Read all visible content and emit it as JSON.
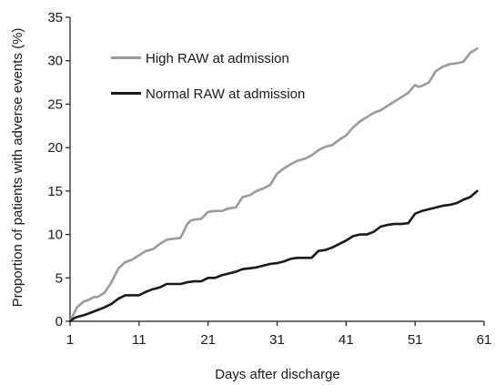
{
  "chart_data": {
    "type": "line",
    "title": "",
    "xlabel": "Days after discharge",
    "ylabel": "Proportion of patients with adverse events (%)",
    "xlim": [
      1,
      61
    ],
    "ylim": [
      0,
      35
    ],
    "xticks": [
      1,
      11,
      21,
      31,
      41,
      51,
      61
    ],
    "yticks": [
      0,
      5,
      10,
      15,
      20,
      25,
      30,
      35
    ],
    "grid": false,
    "legend_position": "top-left",
    "series": [
      {
        "name": "High RAW at admission",
        "color": "#9b9b9b",
        "x": [
          1,
          1.5,
          2,
          3,
          3.5,
          4.5,
          5,
          6,
          7,
          8,
          9,
          10,
          11,
          12,
          13,
          14,
          15,
          16,
          17,
          18,
          18.5,
          19,
          20,
          21,
          22,
          23,
          24,
          25,
          26,
          27,
          28,
          29,
          30,
          31,
          32,
          33,
          34,
          35,
          36,
          37,
          38,
          39,
          40,
          41,
          42,
          43,
          44,
          45,
          46,
          47,
          48,
          49,
          50,
          51,
          51.5,
          52,
          53,
          54,
          55,
          56,
          57,
          58,
          59,
          60
        ],
        "y": [
          0,
          0.8,
          1.6,
          2.3,
          2.4,
          2.8,
          2.8,
          3.3,
          4.5,
          6.1,
          6.8,
          7.1,
          7.6,
          8.1,
          8.3,
          8.9,
          9.4,
          9.5,
          9.6,
          11.2,
          11.6,
          11.7,
          11.8,
          12.6,
          12.7,
          12.7,
          13.0,
          13.1,
          14.3,
          14.5,
          15.0,
          15.3,
          15.7,
          17.0,
          17.6,
          18.1,
          18.5,
          18.7,
          19.1,
          19.7,
          20.1,
          20.3,
          20.9,
          21.4,
          22.3,
          23.0,
          23.5,
          24.0,
          24.3,
          24.8,
          25.3,
          25.8,
          26.3,
          27.2,
          27.0,
          27.1,
          27.5,
          28.8,
          29.3,
          29.6,
          29.7,
          29.9,
          30.9,
          31.4
        ]
      },
      {
        "name": "Normal RAW at admission",
        "color": "#1a1a1a",
        "x": [
          1,
          1.5,
          2,
          3,
          4,
          5,
          6,
          7,
          7.5,
          8,
          9,
          10,
          11,
          12,
          13,
          14,
          15,
          16,
          17,
          18,
          19,
          20,
          21,
          22,
          23,
          24,
          25,
          26,
          27,
          28,
          29,
          30,
          31,
          32,
          33,
          34,
          35,
          36,
          37,
          38,
          39,
          40,
          41,
          42,
          43,
          44,
          45,
          46,
          47,
          48,
          49,
          50,
          51,
          52,
          53,
          54,
          55,
          56,
          57,
          58,
          59,
          60
        ],
        "y": [
          0,
          0.3,
          0.5,
          0.7,
          1.0,
          1.3,
          1.6,
          2.0,
          2.3,
          2.6,
          3.0,
          3.0,
          3.0,
          3.4,
          3.7,
          3.9,
          4.3,
          4.3,
          4.3,
          4.5,
          4.6,
          4.6,
          5.0,
          5.0,
          5.3,
          5.5,
          5.7,
          6.0,
          6.1,
          6.2,
          6.4,
          6.6,
          6.7,
          6.9,
          7.2,
          7.3,
          7.3,
          7.3,
          8.1,
          8.2,
          8.5,
          8.9,
          9.3,
          9.8,
          10.0,
          10.0,
          10.3,
          10.9,
          11.1,
          11.2,
          11.2,
          11.3,
          12.4,
          12.7,
          12.9,
          13.1,
          13.3,
          13.4,
          13.6,
          14.0,
          14.3,
          15.0
        ]
      }
    ]
  }
}
